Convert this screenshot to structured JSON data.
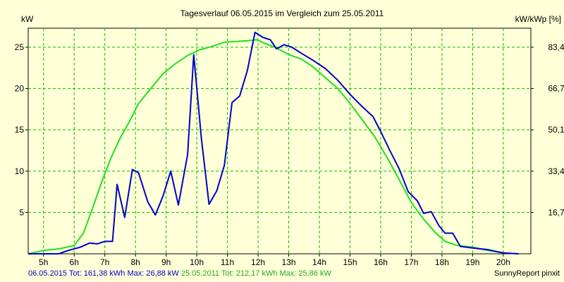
{
  "chart_data": {
    "type": "line",
    "title": "Tagesverlauf 06.05.2015 im Vergleich zum 25.05.2011",
    "ylabel_left": "kW",
    "ylabel_right": "kW/kWp [%]",
    "xlim": [
      4.5,
      20.9
    ],
    "ylim": [
      0,
      27.3
    ],
    "x_ticks": [
      {
        "x": 5,
        "label": "5h"
      },
      {
        "x": 6,
        "label": "6h"
      },
      {
        "x": 7,
        "label": "7h"
      },
      {
        "x": 8,
        "label": "8h"
      },
      {
        "x": 9,
        "label": "9h"
      },
      {
        "x": 10,
        "label": "10h"
      },
      {
        "x": 11,
        "label": "11h"
      },
      {
        "x": 12,
        "label": "12h"
      },
      {
        "x": 13,
        "label": "13h"
      },
      {
        "x": 14,
        "label": "14h"
      },
      {
        "x": 15,
        "label": "15h"
      },
      {
        "x": 16,
        "label": "16h"
      },
      {
        "x": 17,
        "label": "17h"
      },
      {
        "x": 18,
        "label": "18h"
      },
      {
        "x": 19,
        "label": "19h"
      },
      {
        "x": 20,
        "label": "20h"
      }
    ],
    "y_ticks_left": [
      {
        "y": 5,
        "label": "5"
      },
      {
        "y": 10,
        "label": "10"
      },
      {
        "y": 15,
        "label": "15"
      },
      {
        "y": 20,
        "label": "20"
      },
      {
        "y": 25,
        "label": "25"
      }
    ],
    "y_ticks_right": [
      {
        "y": 5,
        "label": "16,7"
      },
      {
        "y": 10,
        "label": "33,4"
      },
      {
        "y": 15,
        "label": "50,1"
      },
      {
        "y": 20,
        "label": "66,7"
      },
      {
        "y": 25,
        "label": "83,4"
      }
    ],
    "series": [
      {
        "name": "06.05.2015",
        "color": "#0000cc",
        "points": [
          [
            4.5,
            0
          ],
          [
            5.5,
            0
          ],
          [
            5.8,
            0.4
          ],
          [
            6.2,
            0.8
          ],
          [
            6.5,
            1.3
          ],
          [
            6.75,
            1.2
          ],
          [
            7.0,
            1.5
          ],
          [
            7.25,
            1.5
          ],
          [
            7.4,
            8.4
          ],
          [
            7.65,
            4.4
          ],
          [
            7.9,
            10.2
          ],
          [
            8.1,
            9.8
          ],
          [
            8.4,
            6.3
          ],
          [
            8.65,
            4.7
          ],
          [
            8.9,
            7.0
          ],
          [
            9.15,
            10.0
          ],
          [
            9.4,
            5.9
          ],
          [
            9.7,
            12.0
          ],
          [
            9.9,
            24.1
          ],
          [
            10.15,
            14.0
          ],
          [
            10.4,
            6.0
          ],
          [
            10.65,
            7.6
          ],
          [
            10.9,
            10.7
          ],
          [
            11.15,
            18.3
          ],
          [
            11.4,
            19.1
          ],
          [
            11.65,
            22.2
          ],
          [
            11.9,
            26.8
          ],
          [
            12.15,
            26.2
          ],
          [
            12.4,
            25.9
          ],
          [
            12.6,
            24.8
          ],
          [
            12.85,
            25.3
          ],
          [
            13.1,
            25.0
          ],
          [
            13.4,
            24.3
          ],
          [
            13.8,
            23.4
          ],
          [
            14.2,
            22.4
          ],
          [
            14.6,
            21.0
          ],
          [
            15.0,
            19.3
          ],
          [
            15.4,
            17.8
          ],
          [
            15.75,
            16.6
          ],
          [
            16.0,
            14.8
          ],
          [
            16.3,
            12.5
          ],
          [
            16.6,
            10.3
          ],
          [
            16.9,
            7.5
          ],
          [
            17.2,
            6.4
          ],
          [
            17.4,
            4.9
          ],
          [
            17.65,
            5.1
          ],
          [
            17.9,
            3.4
          ],
          [
            18.1,
            2.5
          ],
          [
            18.35,
            2.5
          ],
          [
            18.6,
            0.9
          ],
          [
            19.0,
            0.7
          ],
          [
            19.5,
            0.5
          ],
          [
            20.0,
            0.1
          ],
          [
            20.5,
            0
          ]
        ]
      },
      {
        "name": "25.05.2011",
        "color": "#22dd22",
        "points": [
          [
            4.5,
            0
          ],
          [
            5.0,
            0.4
          ],
          [
            5.5,
            0.6
          ],
          [
            6.0,
            1.0
          ],
          [
            6.3,
            2.5
          ],
          [
            6.6,
            5.5
          ],
          [
            6.9,
            8.7
          ],
          [
            7.2,
            11.6
          ],
          [
            7.5,
            14.0
          ],
          [
            7.8,
            16.0
          ],
          [
            8.1,
            18.2
          ],
          [
            8.5,
            20.0
          ],
          [
            8.9,
            21.8
          ],
          [
            9.3,
            23.0
          ],
          [
            9.7,
            24.0
          ],
          [
            10.1,
            24.7
          ],
          [
            10.5,
            25.1
          ],
          [
            10.9,
            25.6
          ],
          [
            11.3,
            25.7
          ],
          [
            11.7,
            25.8
          ],
          [
            11.95,
            25.9
          ],
          [
            12.2,
            25.5
          ],
          [
            12.6,
            24.9
          ],
          [
            13.0,
            24.1
          ],
          [
            13.4,
            23.6
          ],
          [
            13.8,
            22.6
          ],
          [
            14.2,
            21.3
          ],
          [
            14.6,
            20.0
          ],
          [
            15.0,
            18.2
          ],
          [
            15.4,
            16.2
          ],
          [
            15.8,
            14.2
          ],
          [
            16.2,
            11.7
          ],
          [
            16.6,
            9.0
          ],
          [
            17.0,
            6.2
          ],
          [
            17.4,
            4.2
          ],
          [
            17.8,
            2.5
          ],
          [
            18.1,
            1.5
          ],
          [
            18.5,
            1.0
          ],
          [
            19.0,
            0.8
          ],
          [
            19.5,
            0.4
          ],
          [
            20.0,
            0.1
          ],
          [
            20.5,
            0
          ]
        ]
      }
    ],
    "footer": {
      "series1_text": "06.05.2015 Tot: 161,38 kWh Max: 26,88 kW",
      "series2_text": "25.05.2011 Tot: 212,17 kWh Max: 25,86 kW",
      "credit": "SunnyReport pinxit"
    }
  }
}
